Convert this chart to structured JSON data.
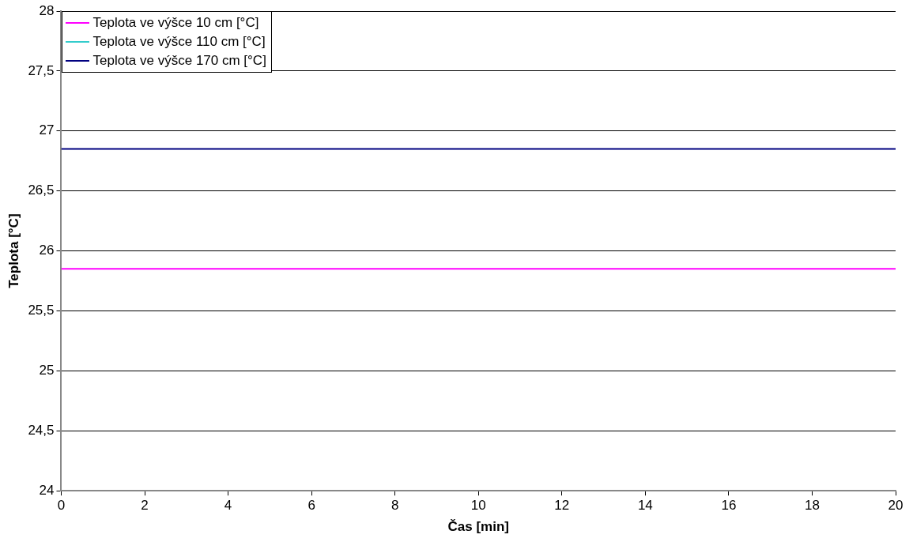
{
  "chart_data": {
    "type": "line",
    "xlabel": "Čas [min]",
    "ylabel": "Teplota [°C]",
    "x": [
      0,
      20
    ],
    "series": [
      {
        "name": "Teplota ve výšce 10 cm [°C]",
        "color": "#ff00ff",
        "values": [
          25.85,
          25.85
        ]
      },
      {
        "name": "Teplota ve výšce 110 cm [°C]",
        "color": "#33cccc",
        "values": [
          null,
          null
        ]
      },
      {
        "name": "Teplota ve výšce 170 cm [°C]",
        "color": "#000080",
        "values": [
          26.85,
          26.85
        ]
      }
    ],
    "xlim": [
      0,
      20
    ],
    "xticks": [
      0,
      2,
      4,
      6,
      8,
      10,
      12,
      14,
      16,
      18,
      20
    ],
    "ylim": [
      24,
      28
    ],
    "yticks": [
      24,
      {
        "value": 24.5,
        "label": "24,5"
      },
      25,
      {
        "value": 25.5,
        "label": "25,5"
      },
      26,
      {
        "value": 26.5,
        "label": "26,5"
      },
      27,
      {
        "value": 27.5,
        "label": "27,5"
      },
      28
    ],
    "grid": "y",
    "legend": "top left",
    "marker": "none",
    "line_style": "solid"
  }
}
